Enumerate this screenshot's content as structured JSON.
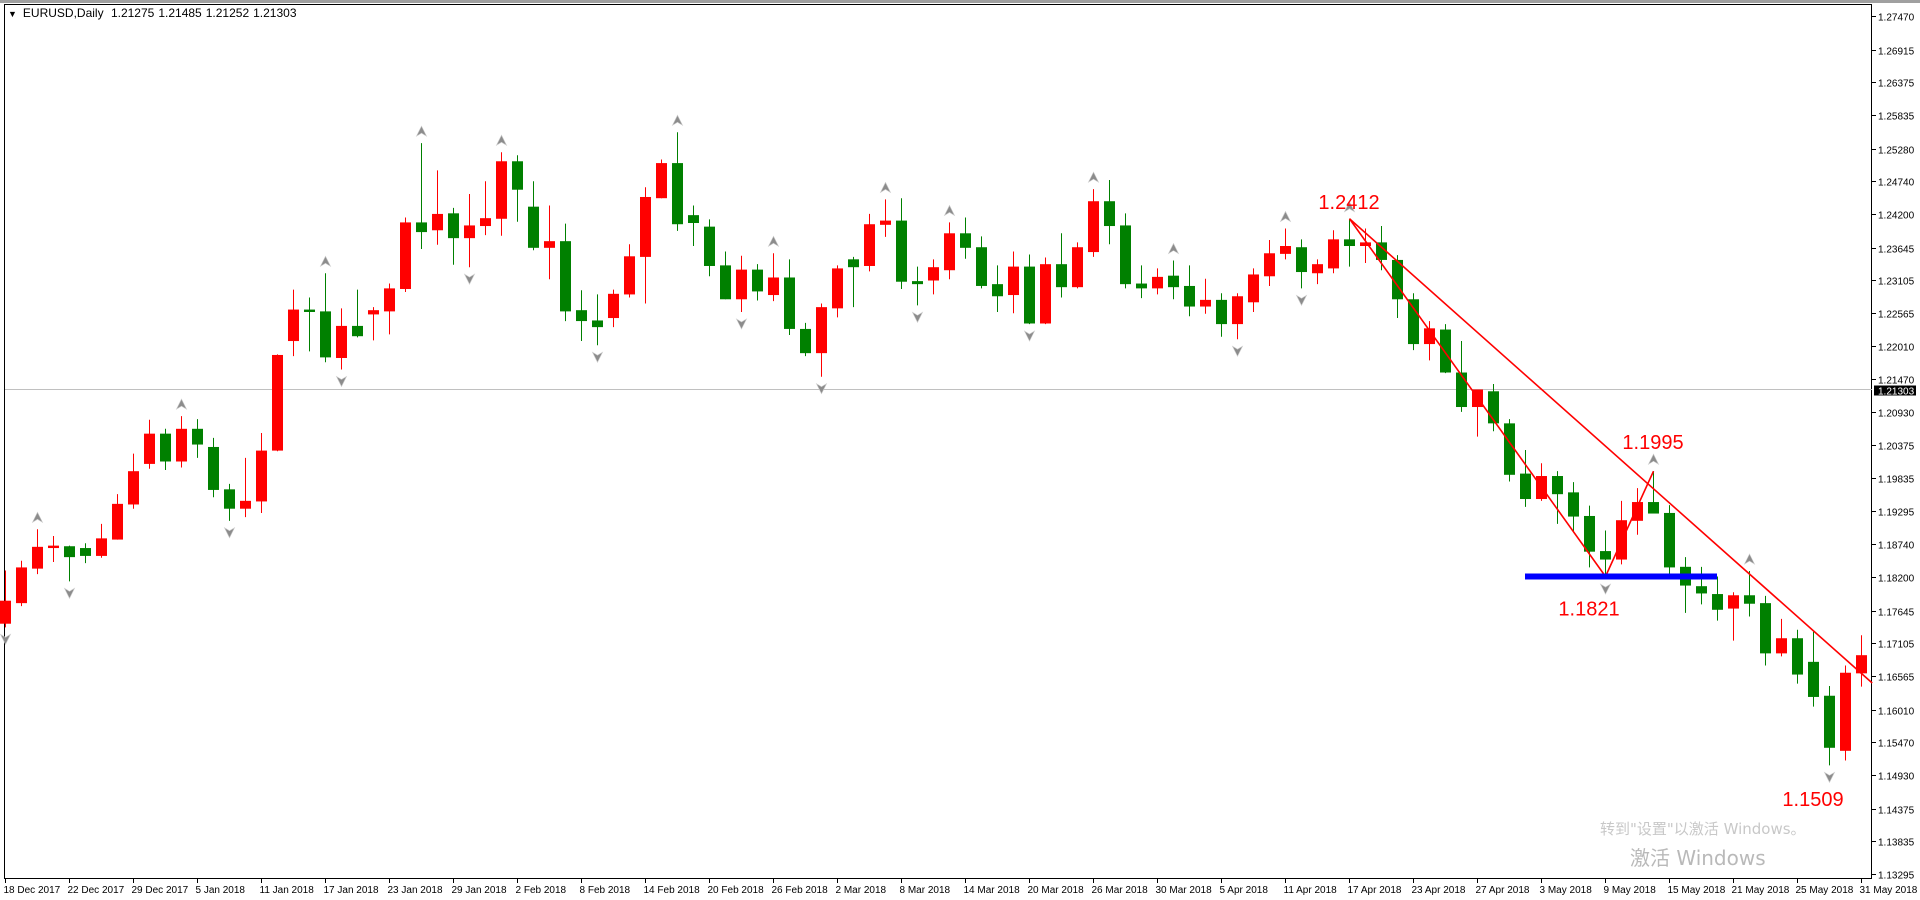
{
  "header": {
    "symbol_timeframe": "EURUSD,Daily",
    "open": "1.21275",
    "high": "1.21485",
    "low": "1.21252",
    "close": "1.21303"
  },
  "watermark": {
    "line1": "激活 Windows",
    "line2": "转到\"设置\"以激活 Windows。"
  },
  "colors": {
    "bull": "#ff0000",
    "bear": "#008000",
    "trendline": "#ff0000",
    "support": "#0000ff",
    "bid_line": "#c0c0c0",
    "fractal": "#8c8c8c",
    "annotation": "#ff0000"
  },
  "chart_data": {
    "type": "candlestick",
    "symbol": "EURUSD",
    "timeframe": "Daily",
    "ylim": [
      1.13295,
      1.2747
    ],
    "y_ticks": [
      "1.27470",
      "1.26915",
      "1.26375",
      "1.25835",
      "1.25280",
      "1.24740",
      "1.24200",
      "1.23645",
      "1.23105",
      "1.22565",
      "1.22010",
      "1.21470",
      "1.20930",
      "1.20375",
      "1.19835",
      "1.19295",
      "1.18740",
      "1.18200",
      "1.17645",
      "1.17105",
      "1.16565",
      "1.16010",
      "1.15470",
      "1.14930",
      "1.14375",
      "1.13835",
      "1.13295"
    ],
    "x_ticks": [
      {
        "bar": 0,
        "label": "18 Dec 2017"
      },
      {
        "bar": 4,
        "label": "22 Dec 2017"
      },
      {
        "bar": 8,
        "label": "29 Dec 2017"
      },
      {
        "bar": 12,
        "label": "5 Jan 2018"
      },
      {
        "bar": 16,
        "label": "11 Jan 2018"
      },
      {
        "bar": 20,
        "label": "17 Jan 2018"
      },
      {
        "bar": 24,
        "label": "23 Jan 2018"
      },
      {
        "bar": 28,
        "label": "29 Jan 2018"
      },
      {
        "bar": 32,
        "label": "2 Feb 2018"
      },
      {
        "bar": 36,
        "label": "8 Feb 2018"
      },
      {
        "bar": 40,
        "label": "14 Feb 2018"
      },
      {
        "bar": 44,
        "label": "20 Feb 2018"
      },
      {
        "bar": 48,
        "label": "26 Feb 2018"
      },
      {
        "bar": 52,
        "label": "2 Mar 2018"
      },
      {
        "bar": 56,
        "label": "8 Mar 2018"
      },
      {
        "bar": 60,
        "label": "14 Mar 2018"
      },
      {
        "bar": 64,
        "label": "20 Mar 2018"
      },
      {
        "bar": 68,
        "label": "26 Mar 2018"
      },
      {
        "bar": 72,
        "label": "30 Mar 2018"
      },
      {
        "bar": 76,
        "label": "5 Apr 2018"
      },
      {
        "bar": 80,
        "label": "11 Apr 2018"
      },
      {
        "bar": 84,
        "label": "17 Apr 2018"
      },
      {
        "bar": 88,
        "label": "23 Apr 2018"
      },
      {
        "bar": 92,
        "label": "27 Apr 2018"
      },
      {
        "bar": 96,
        "label": "3 May 2018"
      },
      {
        "bar": 100,
        "label": "9 May 2018"
      },
      {
        "bar": 104,
        "label": "15 May 2018"
      },
      {
        "bar": 108,
        "label": "21 May 2018"
      },
      {
        "bar": 112,
        "label": "25 May 2018"
      },
      {
        "bar": 116,
        "label": "31 May 2018"
      }
    ],
    "bid_price": "1.21303",
    "ohlc": [
      [
        1.1743,
        1.1831,
        1.1737,
        1.1781
      ],
      [
        1.1777,
        1.1847,
        1.1772,
        1.1836
      ],
      [
        1.1834,
        1.1899,
        1.1825,
        1.187
      ],
      [
        1.1868,
        1.1888,
        1.1845,
        1.1872
      ],
      [
        1.1871,
        1.1872,
        1.1813,
        1.1853
      ],
      [
        1.1868,
        1.1876,
        1.1843,
        1.1855
      ],
      [
        1.1855,
        1.1908,
        1.1852,
        1.1884
      ],
      [
        1.1882,
        1.1957,
        1.1882,
        1.1941
      ],
      [
        1.194,
        1.2024,
        1.1933,
        1.1995
      ],
      [
        1.2007,
        1.208,
        1.1999,
        1.2057
      ],
      [
        1.2057,
        1.2065,
        1.1997,
        1.2011
      ],
      [
        1.2011,
        1.2086,
        1.2001,
        1.2065
      ],
      [
        1.2065,
        1.2081,
        1.2017,
        1.2039
      ],
      [
        1.2035,
        1.205,
        1.1952,
        1.1964
      ],
      [
        1.1965,
        1.1974,
        1.1913,
        1.1933
      ],
      [
        1.1933,
        1.2017,
        1.1919,
        1.1946
      ],
      [
        1.1945,
        1.2058,
        1.1926,
        1.2029
      ],
      [
        1.2029,
        1.2188,
        1.2028,
        1.2187
      ],
      [
        1.221,
        1.2295,
        1.2185,
        1.2262
      ],
      [
        1.2262,
        1.2282,
        1.2193,
        1.2258
      ],
      [
        1.2259,
        1.2322,
        1.2175,
        1.2183
      ],
      [
        1.2182,
        1.2264,
        1.2163,
        1.2235
      ],
      [
        1.2235,
        1.2295,
        1.2216,
        1.2218
      ],
      [
        1.2254,
        1.2266,
        1.2211,
        1.2261
      ],
      [
        1.2259,
        1.2305,
        1.2221,
        1.2297
      ],
      [
        1.2296,
        1.2414,
        1.2291,
        1.2406
      ],
      [
        1.2406,
        1.2537,
        1.2362,
        1.239
      ],
      [
        1.2393,
        1.2492,
        1.2369,
        1.242
      ],
      [
        1.2421,
        1.243,
        1.2336,
        1.238
      ],
      [
        1.238,
        1.2453,
        1.2332,
        1.2401
      ],
      [
        1.24,
        1.2474,
        1.2385,
        1.2413
      ],
      [
        1.2412,
        1.2522,
        1.2384,
        1.2507
      ],
      [
        1.2507,
        1.2517,
        1.2407,
        1.246
      ],
      [
        1.2432,
        1.2474,
        1.236,
        1.2364
      ],
      [
        1.2364,
        1.2434,
        1.2312,
        1.2375
      ],
      [
        1.2375,
        1.2404,
        1.2243,
        1.2259
      ],
      [
        1.2261,
        1.2294,
        1.221,
        1.2243
      ],
      [
        1.2244,
        1.2287,
        1.2203,
        1.2233
      ],
      [
        1.2248,
        1.2295,
        1.2233,
        1.2288
      ],
      [
        1.2287,
        1.237,
        1.2282,
        1.235
      ],
      [
        1.2349,
        1.2464,
        1.2272,
        1.2448
      ],
      [
        1.2446,
        1.251,
        1.2446,
        1.2504
      ],
      [
        1.2504,
        1.2555,
        1.2392,
        1.2403
      ],
      [
        1.2418,
        1.2434,
        1.2367,
        1.2405
      ],
      [
        1.2399,
        1.2411,
        1.2317,
        1.2334
      ],
      [
        1.2335,
        1.2358,
        1.2279,
        1.2279
      ],
      [
        1.2279,
        1.2351,
        1.2258,
        1.2328
      ],
      [
        1.2328,
        1.2337,
        1.2277,
        1.2292
      ],
      [
        1.2286,
        1.2355,
        1.2276,
        1.2315
      ],
      [
        1.2315,
        1.2345,
        1.222,
        1.223
      ],
      [
        1.223,
        1.224,
        1.2185,
        1.219
      ],
      [
        1.219,
        1.2272,
        1.2151,
        1.2266
      ],
      [
        1.2264,
        1.2335,
        1.2249,
        1.233
      ],
      [
        1.2345,
        1.2349,
        1.2266,
        1.2332
      ],
      [
        1.2334,
        1.242,
        1.2325,
        1.2403
      ],
      [
        1.2402,
        1.2444,
        1.2382,
        1.2409
      ],
      [
        1.2409,
        1.2446,
        1.2296,
        1.2308
      ],
      [
        1.2309,
        1.2333,
        1.2269,
        1.2304
      ],
      [
        1.231,
        1.2345,
        1.2287,
        1.2332
      ],
      [
        1.2327,
        1.2406,
        1.2312,
        1.2388
      ],
      [
        1.2388,
        1.2414,
        1.2346,
        1.2364
      ],
      [
        1.2365,
        1.2383,
        1.2297,
        1.2301
      ],
      [
        1.2304,
        1.2335,
        1.2258,
        1.2284
      ],
      [
        1.2286,
        1.2358,
        1.2256,
        1.2333
      ],
      [
        1.2333,
        1.2353,
        1.2238,
        1.2239
      ],
      [
        1.2239,
        1.2348,
        1.2238,
        1.2337
      ],
      [
        1.2337,
        1.2388,
        1.2282,
        1.2299
      ],
      [
        1.2299,
        1.2373,
        1.2297,
        1.2365
      ],
      [
        1.2357,
        1.2461,
        1.2349,
        1.2441
      ],
      [
        1.2441,
        1.2476,
        1.237,
        1.24
      ],
      [
        1.2401,
        1.2421,
        1.2297,
        1.2304
      ],
      [
        1.2305,
        1.2335,
        1.2281,
        1.2297
      ],
      [
        1.2297,
        1.233,
        1.2287,
        1.2316
      ],
      [
        1.2318,
        1.2343,
        1.2279,
        1.2299
      ],
      [
        1.2301,
        1.2335,
        1.2251,
        1.2267
      ],
      [
        1.2267,
        1.2313,
        1.2255,
        1.2278
      ],
      [
        1.2278,
        1.2289,
        1.2217,
        1.2238
      ],
      [
        1.2238,
        1.2289,
        1.2213,
        1.2284
      ],
      [
        1.2274,
        1.233,
        1.2258,
        1.232
      ],
      [
        1.2317,
        1.2377,
        1.2301,
        1.2355
      ],
      [
        1.2354,
        1.2396,
        1.2345,
        1.2367
      ],
      [
        1.2365,
        1.2378,
        1.2297,
        1.2324
      ],
      [
        1.2322,
        1.2345,
        1.2304,
        1.2337
      ],
      [
        1.233,
        1.2393,
        1.2322,
        1.2378
      ],
      [
        1.2378,
        1.2412,
        1.2333,
        1.2367
      ],
      [
        1.2367,
        1.2396,
        1.2339,
        1.2373
      ],
      [
        1.2373,
        1.24,
        1.2327,
        1.2344
      ],
      [
        1.2344,
        1.2352,
        1.2248,
        1.2279
      ],
      [
        1.2279,
        1.2289,
        1.2195,
        1.2205
      ],
      [
        1.2205,
        1.2243,
        1.2178,
        1.2231
      ],
      [
        1.2229,
        1.2238,
        1.2157,
        1.2158
      ],
      [
        1.2158,
        1.221,
        1.2093,
        1.2101
      ],
      [
        1.2101,
        1.213,
        1.2052,
        1.213
      ],
      [
        1.2127,
        1.2139,
        1.2061,
        1.2074
      ],
      [
        1.2074,
        1.2081,
        1.1978,
        1.1989
      ],
      [
        1.1991,
        1.203,
        1.1936,
        1.1949
      ],
      [
        1.1949,
        1.2008,
        1.1946,
        1.1987
      ],
      [
        1.1987,
        1.1995,
        1.1908,
        1.1957
      ],
      [
        1.196,
        1.1977,
        1.1895,
        1.192
      ],
      [
        1.1921,
        1.1938,
        1.1836,
        1.1862
      ],
      [
        1.1863,
        1.1897,
        1.182,
        1.1849
      ],
      [
        1.1849,
        1.1946,
        1.1841,
        1.1914
      ],
      [
        1.1913,
        1.1967,
        1.189,
        1.1944
      ],
      [
        1.1944,
        1.1995,
        1.1925,
        1.1925
      ],
      [
        1.1926,
        1.1939,
        1.1819,
        1.1836
      ],
      [
        1.1837,
        1.1853,
        1.1761,
        1.1806
      ],
      [
        1.1805,
        1.1837,
        1.1775,
        1.1793
      ],
      [
        1.1792,
        1.1821,
        1.1748,
        1.1766
      ],
      [
        1.1768,
        1.1795,
        1.1715,
        1.179
      ],
      [
        1.179,
        1.183,
        1.1755,
        1.1776
      ],
      [
        1.1777,
        1.1789,
        1.1674,
        1.1694
      ],
      [
        1.1694,
        1.1751,
        1.1689,
        1.1719
      ],
      [
        1.1719,
        1.1733,
        1.1644,
        1.1659
      ],
      [
        1.168,
        1.173,
        1.1606,
        1.1622
      ],
      [
        1.1624,
        1.164,
        1.1509,
        1.1538
      ],
      [
        1.1533,
        1.1674,
        1.1517,
        1.1662
      ],
      [
        1.1661,
        1.1724,
        1.1639,
        1.1691
      ]
    ],
    "fractals_up": [
      2,
      11,
      20,
      26,
      31,
      42,
      48,
      55,
      59,
      68,
      73,
      80,
      84,
      103,
      109
    ],
    "fractals_down": [
      0,
      4,
      14,
      21,
      29,
      37,
      46,
      51,
      57,
      64,
      77,
      81,
      100,
      114
    ],
    "trendline": [
      {
        "bar": 84,
        "price": 1.2412
      },
      {
        "bar": 116.7,
        "price": 1.1645
      }
    ],
    "zigzag": [
      {
        "bar": 84,
        "price": 1.2412
      },
      {
        "bar": 100,
        "price": 1.1821
      },
      {
        "bar": 103,
        "price": 1.1995
      }
    ],
    "support_line": {
      "from_bar": 95,
      "to_bar": 107,
      "price": 1.1821
    },
    "annotations": [
      {
        "text": "1.2412",
        "bar": 84,
        "price": 1.244
      },
      {
        "text": "1.1995",
        "bar": 103,
        "price": 1.2043
      },
      {
        "text": "1.1821",
        "bar": 99,
        "price": 1.1768
      },
      {
        "text": "1.1509",
        "bar": 113,
        "price": 1.1453
      }
    ]
  }
}
